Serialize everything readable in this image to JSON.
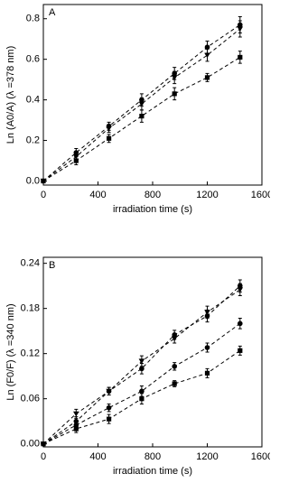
{
  "chart_data": [
    {
      "type": "scatter",
      "panel_label": "A",
      "x_label": "irradiation time (s)",
      "y_label": "Ln (A0/A)  (λ =378 nm)",
      "xlim": [
        0,
        1600
      ],
      "xticks": [
        0,
        400,
        800,
        1200,
        1600
      ],
      "ylim": [
        -0.02,
        0.87
      ],
      "yticks": [
        {
          "value": 0,
          "label": "0.0"
        },
        0.2,
        0.4,
        0.6,
        0.8
      ],
      "x": [
        0,
        240,
        480,
        720,
        960,
        1200,
        1440
      ],
      "series": [
        {
          "marker": "circle",
          "color": "#000000",
          "values": [
            0,
            0.14,
            0.27,
            0.4,
            0.53,
            0.66,
            0.77
          ],
          "errors": [
            0,
            0.02,
            0.02,
            0.03,
            0.03,
            0.03,
            0.04
          ]
        },
        {
          "marker": "triangle",
          "color": "#000000",
          "values": [
            0,
            0.12,
            0.26,
            0.38,
            0.51,
            0.62,
            0.75
          ],
          "errors": [
            0,
            0.02,
            0.02,
            0.03,
            0.03,
            0.03,
            0.04
          ]
        },
        {
          "marker": "square",
          "color": "#000000",
          "values": [
            0,
            0.1,
            0.21,
            0.32,
            0.43,
            0.51,
            0.61
          ],
          "errors": [
            0,
            0.02,
            0.02,
            0.03,
            0.03,
            0.02,
            0.03
          ]
        }
      ]
    },
    {
      "type": "scatter",
      "panel_label": "B",
      "x_label": "irradiation time (s)",
      "y_label": "Ln (F0/F)  (λ =340 nm)",
      "xlim": [
        0,
        1600
      ],
      "xticks": [
        0,
        400,
        800,
        1200,
        1600
      ],
      "ylim": [
        -0.004,
        0.248
      ],
      "yticks": [
        {
          "value": 0,
          "label": "0.00"
        },
        {
          "value": 0.06,
          "label": "0.06"
        },
        {
          "value": 0.12,
          "label": "0.12"
        },
        {
          "value": 0.18,
          "label": "0.18"
        },
        {
          "value": 0.24,
          "label": "0.24"
        }
      ],
      "x": [
        0,
        240,
        480,
        720,
        960,
        1200,
        1440
      ],
      "series": [
        {
          "marker": "circle",
          "color": "#000000",
          "values": [
            0,
            0.03,
            0.07,
            0.1,
            0.145,
            0.17,
            0.21
          ],
          "errors": [
            0,
            0.006,
            0.005,
            0.007,
            0.006,
            0.008,
            0.008
          ]
        },
        {
          "marker": "triangle",
          "color": "#000000",
          "values": [
            0,
            0.04,
            0.07,
            0.11,
            0.14,
            0.175,
            0.205
          ],
          "errors": [
            0,
            0.006,
            0.005,
            0.007,
            0.006,
            0.008,
            0.008
          ]
        },
        {
          "marker": "circle",
          "color": "#000000",
          "values": [
            0,
            0.025,
            0.048,
            0.07,
            0.103,
            0.128,
            0.16
          ],
          "errors": [
            0,
            0.005,
            0.005,
            0.007,
            0.005,
            0.006,
            0.007
          ]
        },
        {
          "marker": "square",
          "color": "#000000",
          "values": [
            0,
            0.02,
            0.033,
            0.06,
            0.08,
            0.094,
            0.124
          ],
          "errors": [
            0,
            0.005,
            0.006,
            0.007,
            0.004,
            0.006,
            0.006
          ]
        }
      ]
    }
  ]
}
